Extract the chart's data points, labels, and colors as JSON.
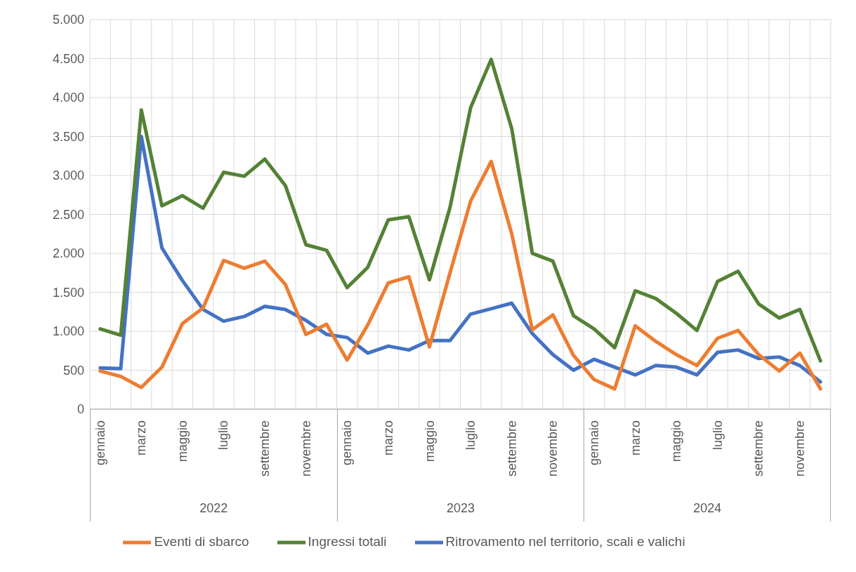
{
  "chart_data": {
    "type": "line",
    "categories": [
      "gennaio",
      null,
      "marzo",
      null,
      "maggio",
      null,
      "luglio",
      null,
      "settembre",
      null,
      "novembre",
      null,
      "gennaio",
      null,
      "marzo",
      null,
      "maggio",
      null,
      "luglio",
      null,
      "settembre",
      null,
      "novembre",
      null,
      "gennaio",
      null,
      "marzo",
      null,
      "maggio",
      null,
      "luglio",
      null,
      "settembre",
      null,
      "novembre",
      null
    ],
    "series": [
      {
        "name": "Ritrovamento nel territorio, scali e valichi",
        "color": "#4472c4",
        "values": [
          530,
          520,
          3500,
          2070,
          1650,
          1280,
          1130,
          1190,
          1320,
          1280,
          1140,
          960,
          920,
          720,
          810,
          760,
          880,
          880,
          1220,
          1290,
          1360,
          970,
          700,
          500,
          640,
          540,
          440,
          560,
          540,
          440,
          730,
          760,
          650,
          670,
          560,
          350
        ]
      },
      {
        "name": "Eventi di sbarco",
        "color": "#ed7d31",
        "values": [
          490,
          420,
          280,
          540,
          1100,
          1300,
          1910,
          1810,
          1900,
          1600,
          960,
          1090,
          630,
          1080,
          1620,
          1700,
          800,
          1750,
          2670,
          3180,
          2250,
          1020,
          1210,
          690,
          380,
          260,
          1070,
          870,
          700,
          560,
          910,
          1010,
          700,
          490,
          720,
          260
        ]
      },
      {
        "name": "Ingressi totali",
        "color": "#548235",
        "values": [
          1030,
          950,
          3840,
          2610,
          2740,
          2580,
          3040,
          2990,
          3210,
          2870,
          2110,
          2040,
          1560,
          1820,
          2430,
          2470,
          1660,
          2590,
          3870,
          4490,
          3600,
          2000,
          1900,
          1200,
          1030,
          790,
          1520,
          1420,
          1230,
          1010,
          1640,
          1770,
          1350,
          1170,
          1280,
          620
        ]
      }
    ],
    "ylim": [
      0,
      5000
    ],
    "yticks": [
      0,
      500,
      {
        "value": 1000,
        "label": "1.000"
      },
      {
        "value": 1500,
        "label": "1.500"
      },
      {
        "value": 2000,
        "label": "2.000"
      },
      {
        "value": 2500,
        "label": "2.500"
      },
      {
        "value": 3000,
        "label": "3.000"
      },
      {
        "value": 3500,
        "label": "3.500"
      },
      {
        "value": 4000,
        "label": "4.000"
      },
      {
        "value": 4500,
        "label": "4.500"
      },
      {
        "value": 5000,
        "label": "5.000"
      }
    ],
    "annotations": [
      "2022",
      "2023",
      "2024"
    ],
    "grid": true,
    "legend": "bottom"
  }
}
